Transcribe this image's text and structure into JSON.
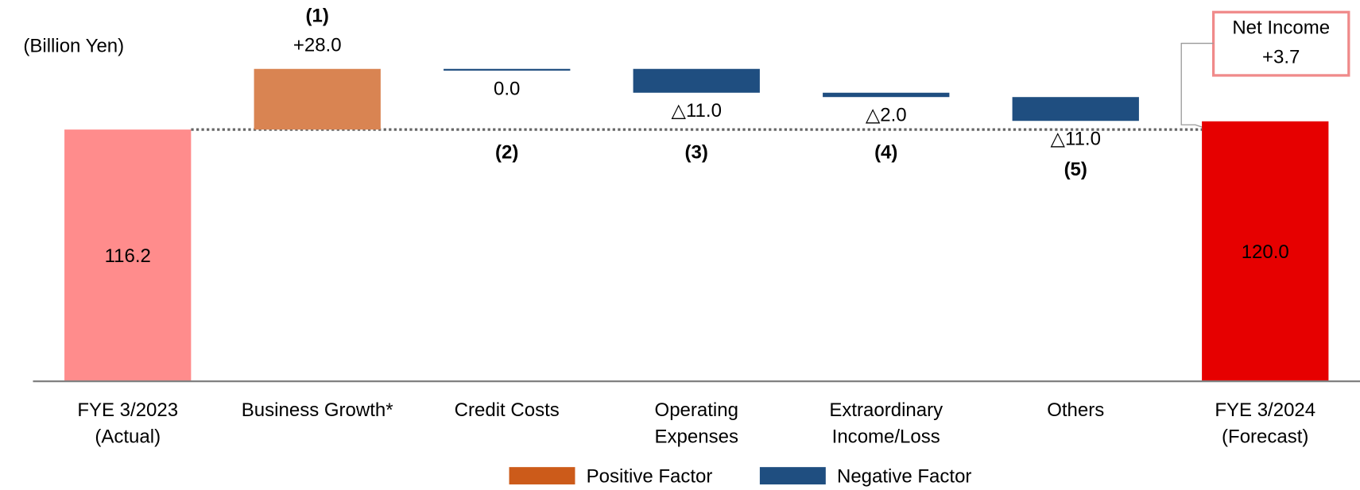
{
  "chart_data": {
    "type": "waterfall",
    "unit_label": "(Billion Yen)",
    "categories": [
      "FYE 3/2023\n(Actual)",
      "Business Growth*",
      "Credit Costs",
      "Operating\nExpenses",
      "Extraordinary\nIncome/Loss",
      "Others",
      "FYE 3/2024\n(Forecast)"
    ],
    "values": [
      116.2,
      28.0,
      0.0,
      -11.0,
      -2.0,
      -11.0,
      120.0
    ],
    "value_labels": [
      "116.2",
      "+28.0",
      "0.0",
      "△11.0",
      "△2.0",
      "△11.0",
      "120.0"
    ],
    "totals": [
      true,
      false,
      false,
      false,
      false,
      false,
      true
    ],
    "step_labels": [
      null,
      "(1)",
      "(2)",
      "(3)",
      "(4)",
      "(5)",
      null
    ],
    "bar_colors": [
      "#ff8c8c",
      "#d98452",
      "#1f4e80",
      "#1f4e80",
      "#1f4e80",
      "#1f4e80",
      "#e60000"
    ],
    "ylim": [
      0,
      176
    ],
    "annotation": [
      "Net Income",
      "+3.7"
    ],
    "legend": [
      {
        "name": "Positive Factor",
        "color": "#cc5b1a"
      },
      {
        "name": "Negative Factor",
        "color": "#1f4e80"
      }
    ]
  }
}
